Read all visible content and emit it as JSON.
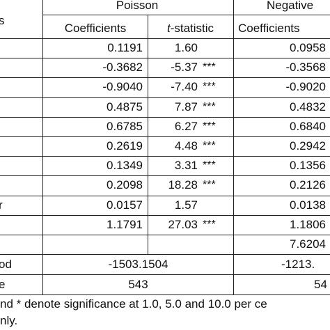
{
  "header": {
    "stub_tail": "s",
    "group_poisson": "Poisson",
    "group_negative": "Negative",
    "col_coef_p": "Coefficients",
    "col_t_italic": "t",
    "col_t_rest": "-statistic",
    "col_coef_n": "Coefficients"
  },
  "rows": [
    {
      "stub": "",
      "coef_p": "0.1191",
      "t": "1.60",
      "sig": "",
      "coef_n": "0.0958"
    },
    {
      "stub": "",
      "coef_p": "-0.3682",
      "t": "-5.37",
      "sig": "***",
      "coef_n": "-0.3568"
    },
    {
      "stub": "",
      "coef_p": "-0.9040",
      "t": "-7.40",
      "sig": "***",
      "coef_n": "-0.9020"
    },
    {
      "stub": "",
      "coef_p": "0.4875",
      "t": "7.87",
      "sig": "***",
      "coef_n": "0.4832"
    },
    {
      "stub": "",
      "coef_p": "0.6785",
      "t": "6.27",
      "sig": "***",
      "coef_n": "0.6840"
    },
    {
      "stub": "",
      "coef_p": "0.2619",
      "t": "4.48",
      "sig": "***",
      "coef_n": "0.2942"
    },
    {
      "stub": "",
      "coef_p": "0.1349",
      "t": "3.31",
      "sig": "***",
      "coef_n": "0.1356"
    },
    {
      "stub": "",
      "coef_p": "0.2098",
      "t": "18.28",
      "sig": "***",
      "coef_n": "0.2126"
    },
    {
      "stub": "r",
      "coef_p": "0.0157",
      "t": "1.57",
      "sig": "",
      "coef_n": "0.0138"
    },
    {
      "stub": "",
      "coef_p": "1.1791",
      "t": "27.03",
      "sig": "***",
      "coef_n": "1.1806"
    },
    {
      "stub": "",
      "coef_p": "",
      "t": "",
      "sig": "",
      "coef_n": "7.6204"
    }
  ],
  "summary": [
    {
      "stub": "od",
      "poisson": "-1503.1504",
      "negative": "-1213."
    },
    {
      "stub": "e",
      "poisson": "543",
      "negative": "54"
    }
  ],
  "footnote": {
    "line1": "nd * denote significance at 1.0, 5.0 and 10.0 per ce",
    "line2": "nly."
  }
}
